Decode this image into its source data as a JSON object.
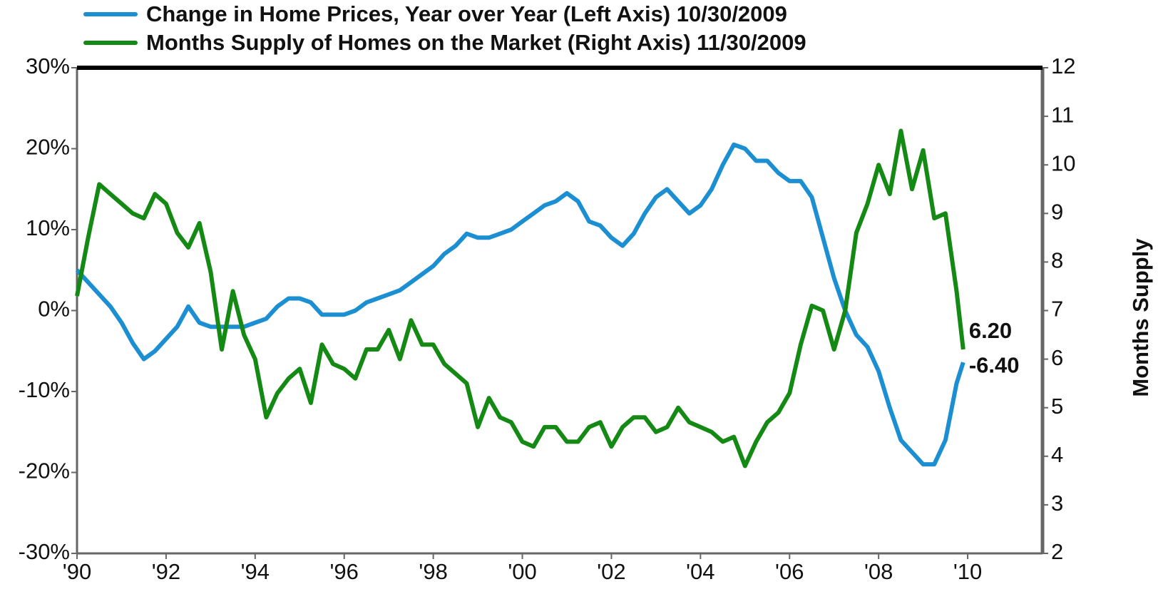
{
  "chart_data": {
    "type": "line",
    "x": [
      1990,
      1990.25,
      1990.5,
      1990.75,
      1991,
      1991.25,
      1991.5,
      1991.75,
      1992,
      1992.25,
      1992.5,
      1992.75,
      1993,
      1993.25,
      1993.5,
      1993.75,
      1994,
      1994.25,
      1994.5,
      1994.75,
      1995,
      1995.25,
      1995.5,
      1995.75,
      1996,
      1996.25,
      1996.5,
      1996.75,
      1997,
      1997.25,
      1997.5,
      1997.75,
      1998,
      1998.25,
      1998.5,
      1998.75,
      1999,
      1999.25,
      1999.5,
      1999.75,
      2000,
      2000.25,
      2000.5,
      2000.75,
      2001,
      2001.25,
      2001.5,
      2001.75,
      2002,
      2002.25,
      2002.5,
      2002.75,
      2003,
      2003.25,
      2003.5,
      2003.75,
      2004,
      2004.25,
      2004.5,
      2004.75,
      2005,
      2005.25,
      2005.5,
      2005.75,
      2006,
      2006.25,
      2006.5,
      2006.75,
      2007,
      2007.25,
      2007.5,
      2007.75,
      2008,
      2008.25,
      2008.5,
      2008.75,
      2009,
      2009.25,
      2009.5,
      2009.75,
      2009.9
    ],
    "series": [
      {
        "name": "Change in Home Prices, Year over Year (Left Axis) 10/30/2009",
        "color": "#1b8fd2",
        "values": [
          5,
          3.5,
          2,
          0.5,
          -1.5,
          -4,
          -6,
          -5,
          -3.5,
          -2,
          0.5,
          -1.5,
          -2,
          -2,
          -2,
          -2,
          -1.5,
          -1,
          0.5,
          1.5,
          1.5,
          1,
          -0.5,
          -0.5,
          -0.5,
          0,
          1,
          1.5,
          2,
          2.5,
          3.5,
          4.5,
          5.5,
          7,
          8,
          9.5,
          9,
          9,
          9.5,
          10,
          11,
          12,
          13,
          13.5,
          14.5,
          13.5,
          11,
          10.5,
          9,
          8,
          9.5,
          12,
          14,
          15,
          13.5,
          12,
          13,
          15,
          18,
          20.5,
          20,
          18.5,
          18.5,
          17,
          16,
          16,
          14,
          9,
          4,
          0,
          -3,
          -4.5,
          -7.5,
          -12,
          -16,
          -17.5,
          -19,
          -19,
          -16,
          -9,
          -6.4
        ],
        "value_labels": [
          null,
          null,
          null,
          null,
          null,
          null,
          null,
          null,
          null,
          null,
          null,
          null,
          null,
          null,
          null,
          null,
          null,
          null,
          null,
          null,
          null,
          null,
          null,
          null,
          null,
          null,
          null,
          null,
          null,
          null,
          null,
          null,
          null,
          null,
          null,
          null,
          null,
          null,
          null,
          null,
          null,
          null,
          null,
          null,
          null,
          null,
          null,
          null,
          null,
          null,
          null,
          null,
          null,
          null,
          null,
          null,
          null,
          null,
          null,
          null,
          null,
          null,
          null,
          null,
          null,
          null,
          null,
          null,
          null,
          null,
          null,
          null,
          null,
          null,
          null,
          null,
          null,
          null,
          null,
          null,
          "-6.40"
        ]
      },
      {
        "name": "Months Supply of Homes on the Market (Right Axis) 11/30/2009",
        "color": "#148a14",
        "axis": "y2",
        "values": [
          7.3,
          8.5,
          9.6,
          9.4,
          9.2,
          9.0,
          8.9,
          9.4,
          9.2,
          8.6,
          8.3,
          8.8,
          7.8,
          6.2,
          7.4,
          6.5,
          6.0,
          4.8,
          5.3,
          5.6,
          5.8,
          5.1,
          6.3,
          5.9,
          5.8,
          5.6,
          6.2,
          6.2,
          6.6,
          6.0,
          6.8,
          6.3,
          6.3,
          5.9,
          5.7,
          5.5,
          4.6,
          5.2,
          4.8,
          4.7,
          4.3,
          4.2,
          4.6,
          4.6,
          4.3,
          4.3,
          4.6,
          4.7,
          4.2,
          4.6,
          4.8,
          4.8,
          4.5,
          4.6,
          5.0,
          4.7,
          4.6,
          4.5,
          4.3,
          4.4,
          3.8,
          4.3,
          4.7,
          4.9,
          5.3,
          6.3,
          7.1,
          7.0,
          6.2,
          7.0,
          8.6,
          9.2,
          10.0,
          9.4,
          10.7,
          9.5,
          10.3,
          8.9,
          9.0,
          7.4,
          6.2
        ],
        "value_labels": [
          null,
          null,
          null,
          null,
          null,
          null,
          null,
          null,
          null,
          null,
          null,
          null,
          null,
          null,
          null,
          null,
          null,
          null,
          null,
          null,
          null,
          null,
          null,
          null,
          null,
          null,
          null,
          null,
          null,
          null,
          null,
          null,
          null,
          null,
          null,
          null,
          null,
          null,
          null,
          null,
          null,
          null,
          null,
          null,
          null,
          null,
          null,
          null,
          null,
          null,
          null,
          null,
          null,
          null,
          null,
          null,
          null,
          null,
          null,
          null,
          null,
          null,
          null,
          null,
          null,
          null,
          null,
          null,
          null,
          null,
          null,
          null,
          null,
          null,
          null,
          null,
          null,
          null,
          null,
          null,
          "6.20"
        ]
      }
    ],
    "xlim": [
      1990,
      2011.68
    ],
    "xticks": [
      {
        "value": 1990,
        "label": "'90"
      },
      {
        "value": 1992,
        "label": "'92"
      },
      {
        "value": 1994,
        "label": "'94"
      },
      {
        "value": 1996,
        "label": "'96"
      },
      {
        "value": 1998,
        "label": "'98"
      },
      {
        "value": 2000,
        "label": "'00"
      },
      {
        "value": 2002,
        "label": "'02"
      },
      {
        "value": 2004,
        "label": "'04"
      },
      {
        "value": 2006,
        "label": "'06"
      },
      {
        "value": 2008,
        "label": "'08"
      },
      {
        "value": 2010,
        "label": "'10"
      }
    ],
    "ylim": [
      -30,
      30
    ],
    "yticks": [
      {
        "value": -30,
        "label": "-30%"
      },
      {
        "value": -20,
        "label": "-20%"
      },
      {
        "value": -10,
        "label": "-10%"
      },
      {
        "value": 0,
        "label": "0%"
      },
      {
        "value": 10,
        "label": "10%"
      },
      {
        "value": 20,
        "label": "20%"
      },
      {
        "value": 30,
        "label": "30%"
      }
    ],
    "y2lim": [
      2,
      12
    ],
    "y2ticks": [
      2,
      3,
      4,
      5,
      6,
      7,
      8,
      9,
      10,
      11,
      12
    ],
    "y2label": "Months Supply",
    "legend": "top"
  }
}
